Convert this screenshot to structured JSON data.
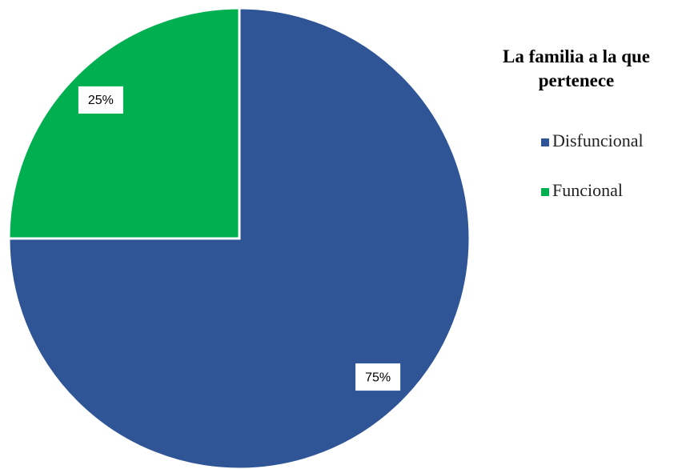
{
  "chart_data": {
    "type": "pie",
    "legend_title": "La familia a la que pertenece",
    "categories": [
      "Disfuncional",
      "Funcional"
    ],
    "values": [
      75,
      25
    ],
    "value_labels": [
      "75%",
      "25%"
    ],
    "colors": [
      "#2F5597",
      "#00B050"
    ],
    "legend": "right"
  }
}
